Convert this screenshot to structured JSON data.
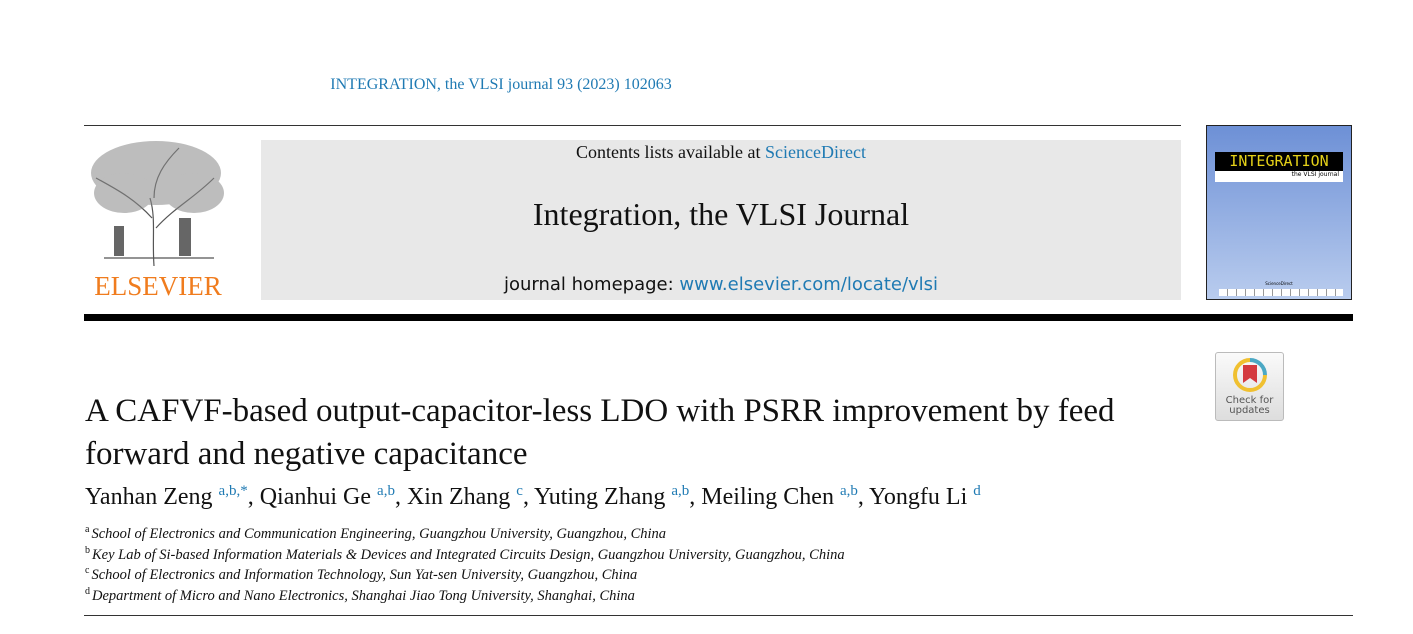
{
  "journal_reference": "INTEGRATION, the VLSI journal 93 (2023) 102063",
  "publisher_logo": "ELSEVIER",
  "banner": {
    "contents_prefix": "Contents lists available at ",
    "contents_link": "ScienceDirect",
    "journal_title": "Integration, the VLSI Journal",
    "homepage_prefix": "journal homepage: ",
    "homepage_link": "www.elsevier.com/locate/vlsi"
  },
  "cover": {
    "title": "INTEGRATION",
    "subtitle": "the VLSI journal",
    "footer": "ScienceDirect"
  },
  "badge": {
    "line1": "Check for",
    "line2": "updates"
  },
  "article": {
    "title": "A CAFVF-based output-capacitor-less LDO with PSRR improvement by feed forward and negative capacitance",
    "authors": [
      {
        "name": "Yanhan Zeng",
        "sup": "a,b,*"
      },
      {
        "name": "Qianhui Ge",
        "sup": "a,b"
      },
      {
        "name": "Xin Zhang",
        "sup": "c"
      },
      {
        "name": "Yuting Zhang",
        "sup": "a,b"
      },
      {
        "name": "Meiling Chen",
        "sup": "a,b"
      },
      {
        "name": "Yongfu Li",
        "sup": "d"
      }
    ],
    "affiliations": [
      {
        "key": "a",
        "text": "School of Electronics and Communication Engineering, Guangzhou University, Guangzhou, China"
      },
      {
        "key": "b",
        "text": "Key Lab of Si-based Information Materials & Devices and Integrated Circuits Design, Guangzhou University, Guangzhou, China"
      },
      {
        "key": "c",
        "text": "School of Electronics and Information Technology, Sun Yat-sen University, Guangzhou, China"
      },
      {
        "key": "d",
        "text": "Department of Micro and Nano Electronics, Shanghai Jiao Tong University, Shanghai, China"
      }
    ]
  },
  "colors": {
    "link": "#1f7ab3",
    "logo": "#f07c1e",
    "banner_bg": "#e8e8e8"
  }
}
